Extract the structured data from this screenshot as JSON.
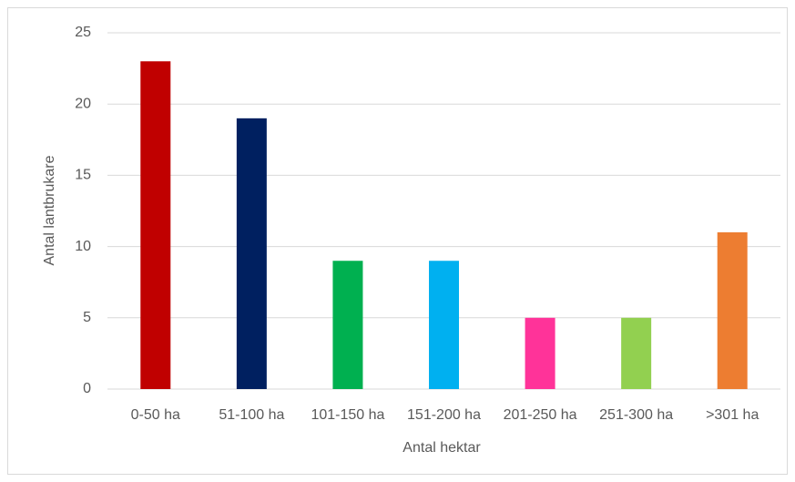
{
  "chart_data": {
    "type": "bar",
    "categories": [
      "0-50 ha",
      "51-100 ha",
      "101-150 ha",
      "151-200 ha",
      "201-250 ha",
      "251-300 ha",
      ">301 ha"
    ],
    "values": [
      23,
      19,
      9,
      9,
      5,
      5,
      11
    ],
    "colors": [
      "#c00000",
      "#002060",
      "#00b050",
      "#00b0f0",
      "#ff3399",
      "#92d050",
      "#ed7d31"
    ],
    "ylim": [
      0,
      25
    ],
    "yticks": [
      0,
      5,
      10,
      15,
      20,
      25
    ],
    "grid": true,
    "xlabel": "Antal hektar",
    "ylabel": "Antal lantbrukare"
  }
}
